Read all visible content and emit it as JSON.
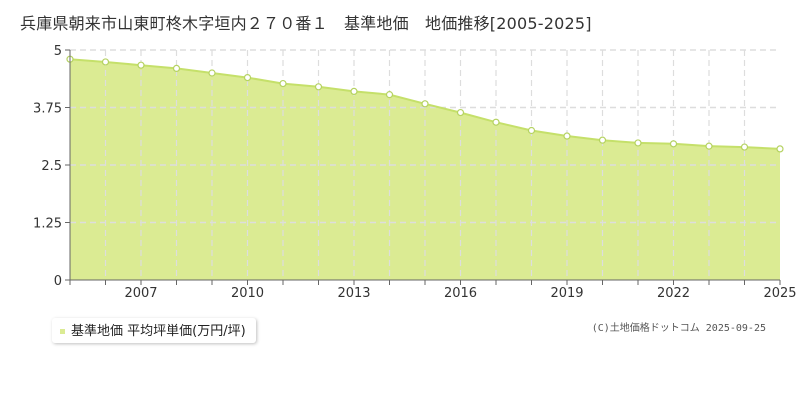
{
  "chart_data": {
    "type": "area",
    "title": "兵庫県朝来市山東町柊木字垣内２７０番１　基準地価　地価推移[2005-2025]",
    "x": [
      2005,
      2006,
      2007,
      2008,
      2009,
      2010,
      2011,
      2012,
      2013,
      2014,
      2015,
      2016,
      2017,
      2018,
      2019,
      2020,
      2021,
      2022,
      2023,
      2024,
      2025
    ],
    "series": [
      {
        "name": "基準地価 平均坪単価(万円/坪)",
        "values": [
          4.8,
          4.74,
          4.67,
          4.6,
          4.5,
          4.4,
          4.27,
          4.2,
          4.1,
          4.03,
          3.83,
          3.64,
          3.43,
          3.25,
          3.13,
          3.04,
          2.98,
          2.96,
          2.91,
          2.89,
          2.85
        ]
      }
    ],
    "y_ticks": [
      "0",
      "1.25",
      "2.5",
      "3.75",
      "5"
    ],
    "x_ticks": [
      "2007",
      "2010",
      "2013",
      "2016",
      "2019",
      "2022",
      "2025"
    ],
    "ylim": [
      0,
      5
    ],
    "xlim": [
      2005,
      2025
    ],
    "grid": true,
    "legend": "bottom-left"
  },
  "copyright": "(C)土地価格ドットコム 2025-09-25",
  "colors": {
    "fill": "#dbeb93",
    "line": "#c5e06a",
    "marker_stroke": "#b5d262",
    "grid": "#dddddd",
    "axis": "#666666",
    "plot_bg": "#ffffff"
  }
}
